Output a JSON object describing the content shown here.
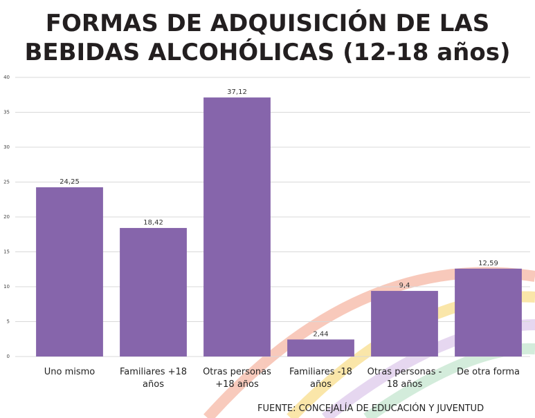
{
  "chart_data": {
    "type": "bar",
    "title": [
      "FORMAS DE ADQUISICIÓN DE LAS",
      "BEBIDAS ALCOHÓLICAS (12-18 años)"
    ],
    "categories": [
      "Uno mismo",
      "Familiares +18 años",
      "Otras personas +18 años",
      "Familiares -18 años",
      "Otras personas - 18 años",
      "De otra forma"
    ],
    "values": [
      24.25,
      18.42,
      37.12,
      2.44,
      9.4,
      12.59
    ],
    "value_labels": [
      "24,25",
      "18,42",
      "37,12",
      "2,44",
      "9,4",
      "12,59"
    ],
    "color": "#8665ab",
    "ylim": [
      0,
      40
    ],
    "yticks": [
      0,
      5,
      10,
      15,
      20,
      25,
      30,
      35,
      40
    ],
    "grid": true,
    "source": "FUENTE: CONCEJALÍA DE EDUCACIÓN Y JUVENTUD"
  }
}
